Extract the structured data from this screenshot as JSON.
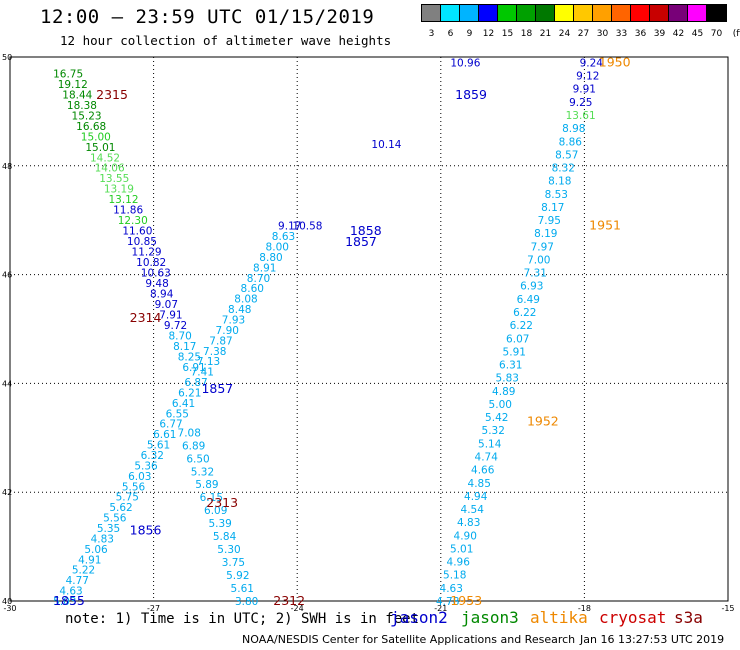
{
  "header": {
    "title": "12:00 – 23:59 UTC 01/15/2019",
    "subtitle": "12 hour collection of altimeter wave heights"
  },
  "colorbar": {
    "labels": [
      "3",
      "6",
      "9",
      "12",
      "15",
      "18",
      "21",
      "24",
      "27",
      "30",
      "33",
      "36",
      "39",
      "42",
      "45",
      "70",
      "(ft)"
    ],
    "colors": [
      "#808080",
      "#00e5ff",
      "#00b4ff",
      "#0000ff",
      "#00c800",
      "#00a000",
      "#007800",
      "#ffff00",
      "#ffc800",
      "#ffa000",
      "#ff6400",
      "#ff0000",
      "#c80000",
      "#780078",
      "#ff00ff",
      "#000000"
    ]
  },
  "footer": {
    "note": "note: 1) Time is in UTC; 2) SWH is in feet",
    "satellites": [
      {
        "name": "jason2",
        "color": "#0000cc"
      },
      {
        "name": "jason3",
        "color": "#008800"
      },
      {
        "name": "altika",
        "color": "#ee8800"
      },
      {
        "name": "cryosat",
        "color": "#cc0000"
      },
      {
        "name": "s3a",
        "color": "#880000"
      }
    ],
    "credit": "NOAA/NESDIS Center for Satellite Applications and Research",
    "timestamp": "Jan 16 13:27:53 UTC 2019"
  },
  "chart_data": {
    "type": "scatter",
    "x_ticks": [
      -30,
      -27,
      -24,
      -21,
      -18,
      -15
    ],
    "y_ticks": [
      40,
      42,
      44,
      46,
      48,
      50
    ],
    "xlim": [
      -30,
      -15
    ],
    "ylim": [
      40,
      50
    ],
    "grid": true,
    "tracks": [
      {
        "x0": -29.1,
        "y0": 49.7,
        "x1": -26.4,
        "y1": 44.3,
        "values": [
          "16.75",
          "19.12",
          "18.44",
          "18.38",
          "15.23",
          "16.68",
          "15.00",
          "15.01",
          "14.52",
          "14.06",
          "13.55",
          "13.19",
          "13.12",
          "11.86",
          "12.30",
          "11.60",
          "10.85",
          "11.29",
          "10.82",
          "10.63",
          "9.48",
          "8.94",
          "9.07",
          "7.91",
          "9.72",
          "8.70",
          "8.17",
          "8.25",
          "6.91"
        ],
        "colors": [
          "#008800",
          "#008800",
          "#008800",
          "#008800",
          "#008800",
          "#008800",
          "#22cc22",
          "#008800",
          "#55dd55",
          "#55dd55",
          "#55dd55",
          "#55dd55",
          "#22cc22",
          "#0000cc",
          "#22cc22",
          "#0000cc",
          "#0000cc",
          "#0000cc",
          "#0000cc",
          "#0000cc",
          "#0000cc",
          "#0000cc",
          "#0000cc",
          "#0000cc",
          "#0000cc",
          "#00aaee",
          "#00aaee",
          "#00aaee",
          "#00aaee"
        ]
      },
      {
        "x0": -26.5,
        "y0": 43.1,
        "x1": -25.3,
        "y1": 40.0,
        "values": [
          "7.08",
          "6.89",
          "6.50",
          "5.32",
          "5.89",
          "6.15",
          "6.09",
          "5.39",
          "5.84",
          "5.30",
          "3.75",
          "5.92",
          "5.61",
          "3.80"
        ],
        "colors": [
          "#00aaee",
          "#00aaee",
          "#00aaee",
          "#00aaee",
          "#00aaee",
          "#00aaee",
          "#00aaee",
          "#00aaee",
          "#00aaee",
          "#00aaee",
          "#00aaee",
          "#00aaee",
          "#00aaee",
          "#00aaee"
        ]
      },
      {
        "x0": -29.1,
        "y0": 40.0,
        "x1": -24.4,
        "y1": 46.9,
        "values": [
          "5.03",
          "4.63",
          "4.77",
          "5.22",
          "4.91",
          "5.06",
          "4.83",
          "5.35",
          "5.56",
          "5.62",
          "5.75",
          "5.56",
          "6.03",
          "5.36",
          "6.32",
          "5.61",
          "6.61",
          "6.77",
          "6.55",
          "6.41",
          "6.21",
          "6.87",
          "7.41",
          "7.13",
          "7.38",
          "7.87",
          "7.90",
          "7.93",
          "8.48",
          "8.08",
          "8.60",
          "8.70",
          "8.91",
          "8.80",
          "8.00",
          "8.63",
          "9.17"
        ],
        "colors": [
          "#00aaee",
          "#00aaee",
          "#00aaee",
          "#00aaee",
          "#00aaee",
          "#00aaee",
          "#00aaee",
          "#00aaee",
          "#00aaee",
          "#00aaee",
          "#00aaee",
          "#00aaee",
          "#00aaee",
          "#00aaee",
          "#00aaee",
          "#00aaee",
          "#00aaee",
          "#00aaee",
          "#00aaee",
          "#00aaee",
          "#00aaee",
          "#00aaee",
          "#00aaee",
          "#00aaee",
          "#00aaee",
          "#00aaee",
          "#00aaee",
          "#00aaee",
          "#00aaee",
          "#00aaee",
          "#00aaee",
          "#00aaee",
          "#00aaee",
          "#00aaee",
          "#00aaee",
          "#00aaee",
          "#0000cc"
        ]
      },
      {
        "x0": -24.1,
        "y0": 46.9,
        "x1": -20.8,
        "y1": 49.9,
        "values": [
          "10.58",
          "10.14",
          "10.96"
        ],
        "colors": [
          "#0000cc",
          "#0000cc",
          "#0000cc"
        ]
      },
      {
        "x0": -21.1,
        "y0": 40.0,
        "x1": -18.1,
        "y1": 49.9,
        "values": [
          "4.78",
          "4.63",
          "5.18",
          "4.96",
          "5.01",
          "4.90",
          "4.83",
          "4.54",
          "4.94",
          "4.85",
          "4.66",
          "4.74",
          "5.14",
          "5.32",
          "5.42",
          "5.00",
          "4.89",
          "5.83",
          "6.31",
          "5.91",
          "6.07",
          "6.22",
          "6.22",
          "6.49",
          "6.93",
          "7.31",
          "7.00",
          "7.97",
          "8.19",
          "7.95",
          "8.17",
          "8.53",
          "8.18",
          "8.32",
          "8.57",
          "8.86",
          "8.98",
          "13.61",
          "9.25",
          "9.91",
          "9.12",
          "9.24"
        ],
        "colors": [
          "#00aaee",
          "#00aaee",
          "#00aaee",
          "#00aaee",
          "#00aaee",
          "#00aaee",
          "#00aaee",
          "#00aaee",
          "#00aaee",
          "#00aaee",
          "#00aaee",
          "#00aaee",
          "#00aaee",
          "#00aaee",
          "#00aaee",
          "#00aaee",
          "#00aaee",
          "#00aaee",
          "#00aaee",
          "#00aaee",
          "#00aaee",
          "#00aaee",
          "#00aaee",
          "#00aaee",
          "#00aaee",
          "#00aaee",
          "#00aaee",
          "#00aaee",
          "#00aaee",
          "#00aaee",
          "#00aaee",
          "#00aaee",
          "#00aaee",
          "#00aaee",
          "#00aaee",
          "#00aaee",
          "#00aaee",
          "#55dd55",
          "#0000cc",
          "#0000cc",
          "#0000cc",
          "#0000cc"
        ]
      }
    ],
    "time_labels": [
      {
        "text": "2315",
        "x": -28.2,
        "y": 49.3,
        "color": "#880000"
      },
      {
        "text": "2314",
        "x": -27.5,
        "y": 45.2,
        "color": "#880000"
      },
      {
        "text": "2313",
        "x": -25.9,
        "y": 41.8,
        "color": "#880000"
      },
      {
        "text": "2312",
        "x": -24.5,
        "y": 40.0,
        "color": "#880000"
      },
      {
        "text": "1855",
        "x": -29.1,
        "y": 40.0,
        "color": "#0000cc"
      },
      {
        "text": "1856",
        "x": -27.5,
        "y": 41.3,
        "color": "#0000cc"
      },
      {
        "text": "1857",
        "x": -26.0,
        "y": 43.9,
        "color": "#0000cc"
      },
      {
        "text": "1857",
        "x": -23.0,
        "y": 46.6,
        "color": "#0000cc"
      },
      {
        "text": "1858",
        "x": -22.9,
        "y": 46.8,
        "color": "#0000cc"
      },
      {
        "text": "1859",
        "x": -20.7,
        "y": 49.3,
        "color": "#0000cc"
      },
      {
        "text": "1950",
        "x": -17.7,
        "y": 49.9,
        "color": "#ee8800"
      },
      {
        "text": "1951",
        "x": -17.9,
        "y": 46.9,
        "color": "#ee8800"
      },
      {
        "text": "1952",
        "x": -19.2,
        "y": 43.3,
        "color": "#ee8800"
      },
      {
        "text": "1953",
        "x": -20.8,
        "y": 40.0,
        "color": "#ee8800"
      }
    ]
  }
}
